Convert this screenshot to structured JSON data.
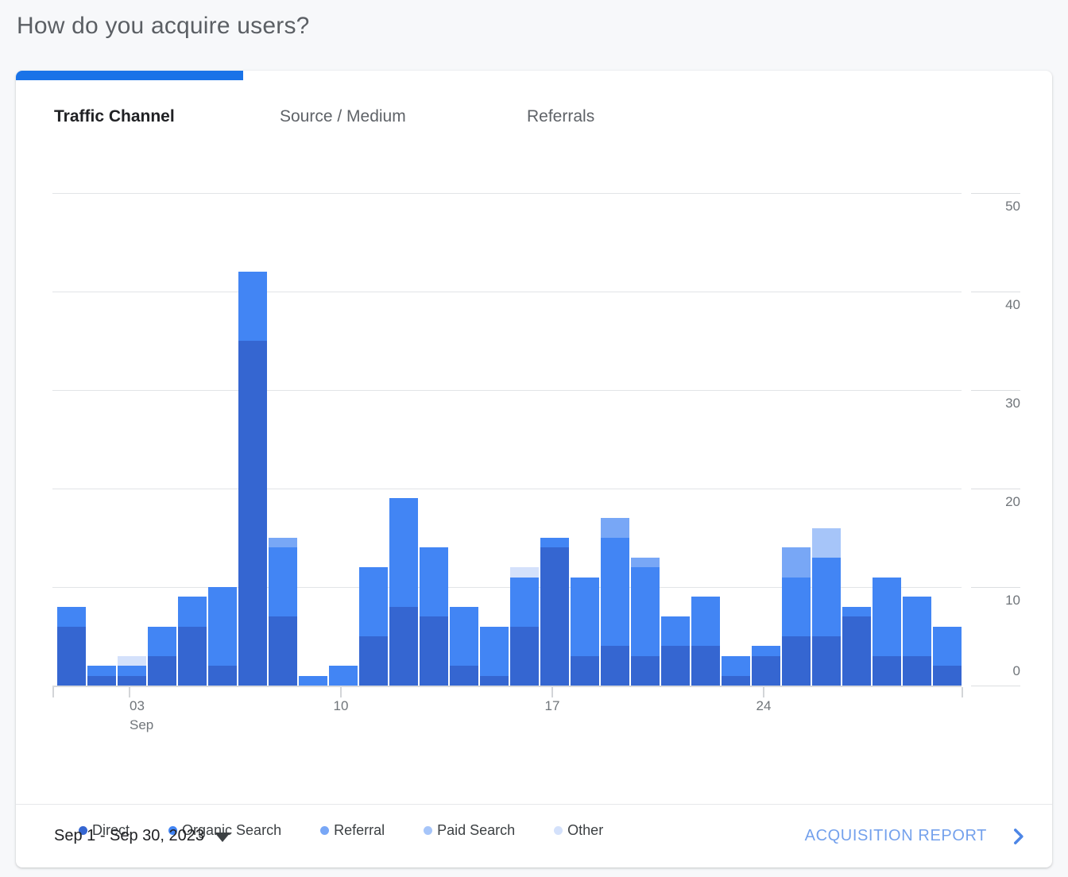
{
  "header": {
    "title": "How do you acquire users?"
  },
  "tabs": [
    {
      "label": "Traffic Channel",
      "active": true
    },
    {
      "label": "Source / Medium",
      "active": false
    },
    {
      "label": "Referrals",
      "active": false
    }
  ],
  "accent_color": "#1a73e8",
  "chart_data": {
    "type": "bar",
    "stacked": true,
    "title": "",
    "xlabel": "",
    "ylabel": "",
    "ylim": [
      0,
      50
    ],
    "y_ticks": [
      0,
      10,
      20,
      30,
      40,
      50
    ],
    "grid": true,
    "legend_position": "bottom",
    "x_days": [
      1,
      2,
      3,
      4,
      5,
      6,
      7,
      8,
      9,
      10,
      11,
      12,
      13,
      14,
      15,
      16,
      17,
      18,
      19,
      20,
      21,
      22,
      23,
      24,
      25,
      26,
      27,
      28,
      29,
      30
    ],
    "x_tick_labels": [
      {
        "day": 3,
        "label": "03",
        "sublabel": "Sep"
      },
      {
        "day": 10,
        "label": "10",
        "sublabel": ""
      },
      {
        "day": 17,
        "label": "17",
        "sublabel": ""
      },
      {
        "day": 24,
        "label": "24",
        "sublabel": ""
      }
    ],
    "series": [
      {
        "name": "Direct",
        "color": "#3566d1",
        "values": [
          6,
          1,
          1,
          3,
          6,
          2,
          35,
          7,
          0,
          0,
          5,
          8,
          7,
          2,
          1,
          6,
          14,
          3,
          4,
          3,
          4,
          4,
          1,
          3,
          5,
          5,
          7,
          3,
          3,
          2
        ]
      },
      {
        "name": "Organic Search",
        "color": "#4285f4",
        "values": [
          2,
          1,
          1,
          3,
          3,
          8,
          7,
          7,
          1,
          2,
          7,
          11,
          7,
          6,
          5,
          5,
          1,
          8,
          11,
          9,
          3,
          5,
          2,
          1,
          6,
          8,
          1,
          8,
          6,
          4
        ]
      },
      {
        "name": "Referral",
        "color": "#78a7f6",
        "values": [
          0,
          0,
          0,
          0,
          0,
          0,
          0,
          1,
          0,
          0,
          0,
          0,
          0,
          0,
          0,
          0,
          0,
          0,
          2,
          1,
          0,
          0,
          0,
          0,
          3,
          0,
          0,
          0,
          0,
          0
        ]
      },
      {
        "name": "Paid Search",
        "color": "#a6c5f9",
        "values": [
          0,
          0,
          0,
          0,
          0,
          0,
          0,
          0,
          0,
          0,
          0,
          0,
          0,
          0,
          0,
          0,
          0,
          0,
          0,
          0,
          0,
          0,
          0,
          0,
          0,
          3,
          0,
          0,
          0,
          0
        ]
      },
      {
        "name": "Other",
        "color": "#d4e1fb",
        "values": [
          0,
          0,
          1,
          0,
          0,
          0,
          0,
          0,
          0,
          0,
          0,
          0,
          0,
          0,
          0,
          1,
          0,
          0,
          0,
          0,
          0,
          0,
          0,
          0,
          0,
          0,
          0,
          0,
          0,
          0
        ]
      }
    ],
    "totals": [
      8,
      2,
      3,
      6,
      9,
      10,
      42,
      15,
      1,
      2,
      12,
      19,
      14,
      8,
      6,
      12,
      15,
      11,
      17,
      13,
      7,
      9,
      3,
      4,
      14,
      16,
      8,
      11,
      9,
      6
    ]
  },
  "footer": {
    "date_range": "Sep 1 - Sep 30, 2023",
    "report_label": "ACQUISITION REPORT"
  }
}
